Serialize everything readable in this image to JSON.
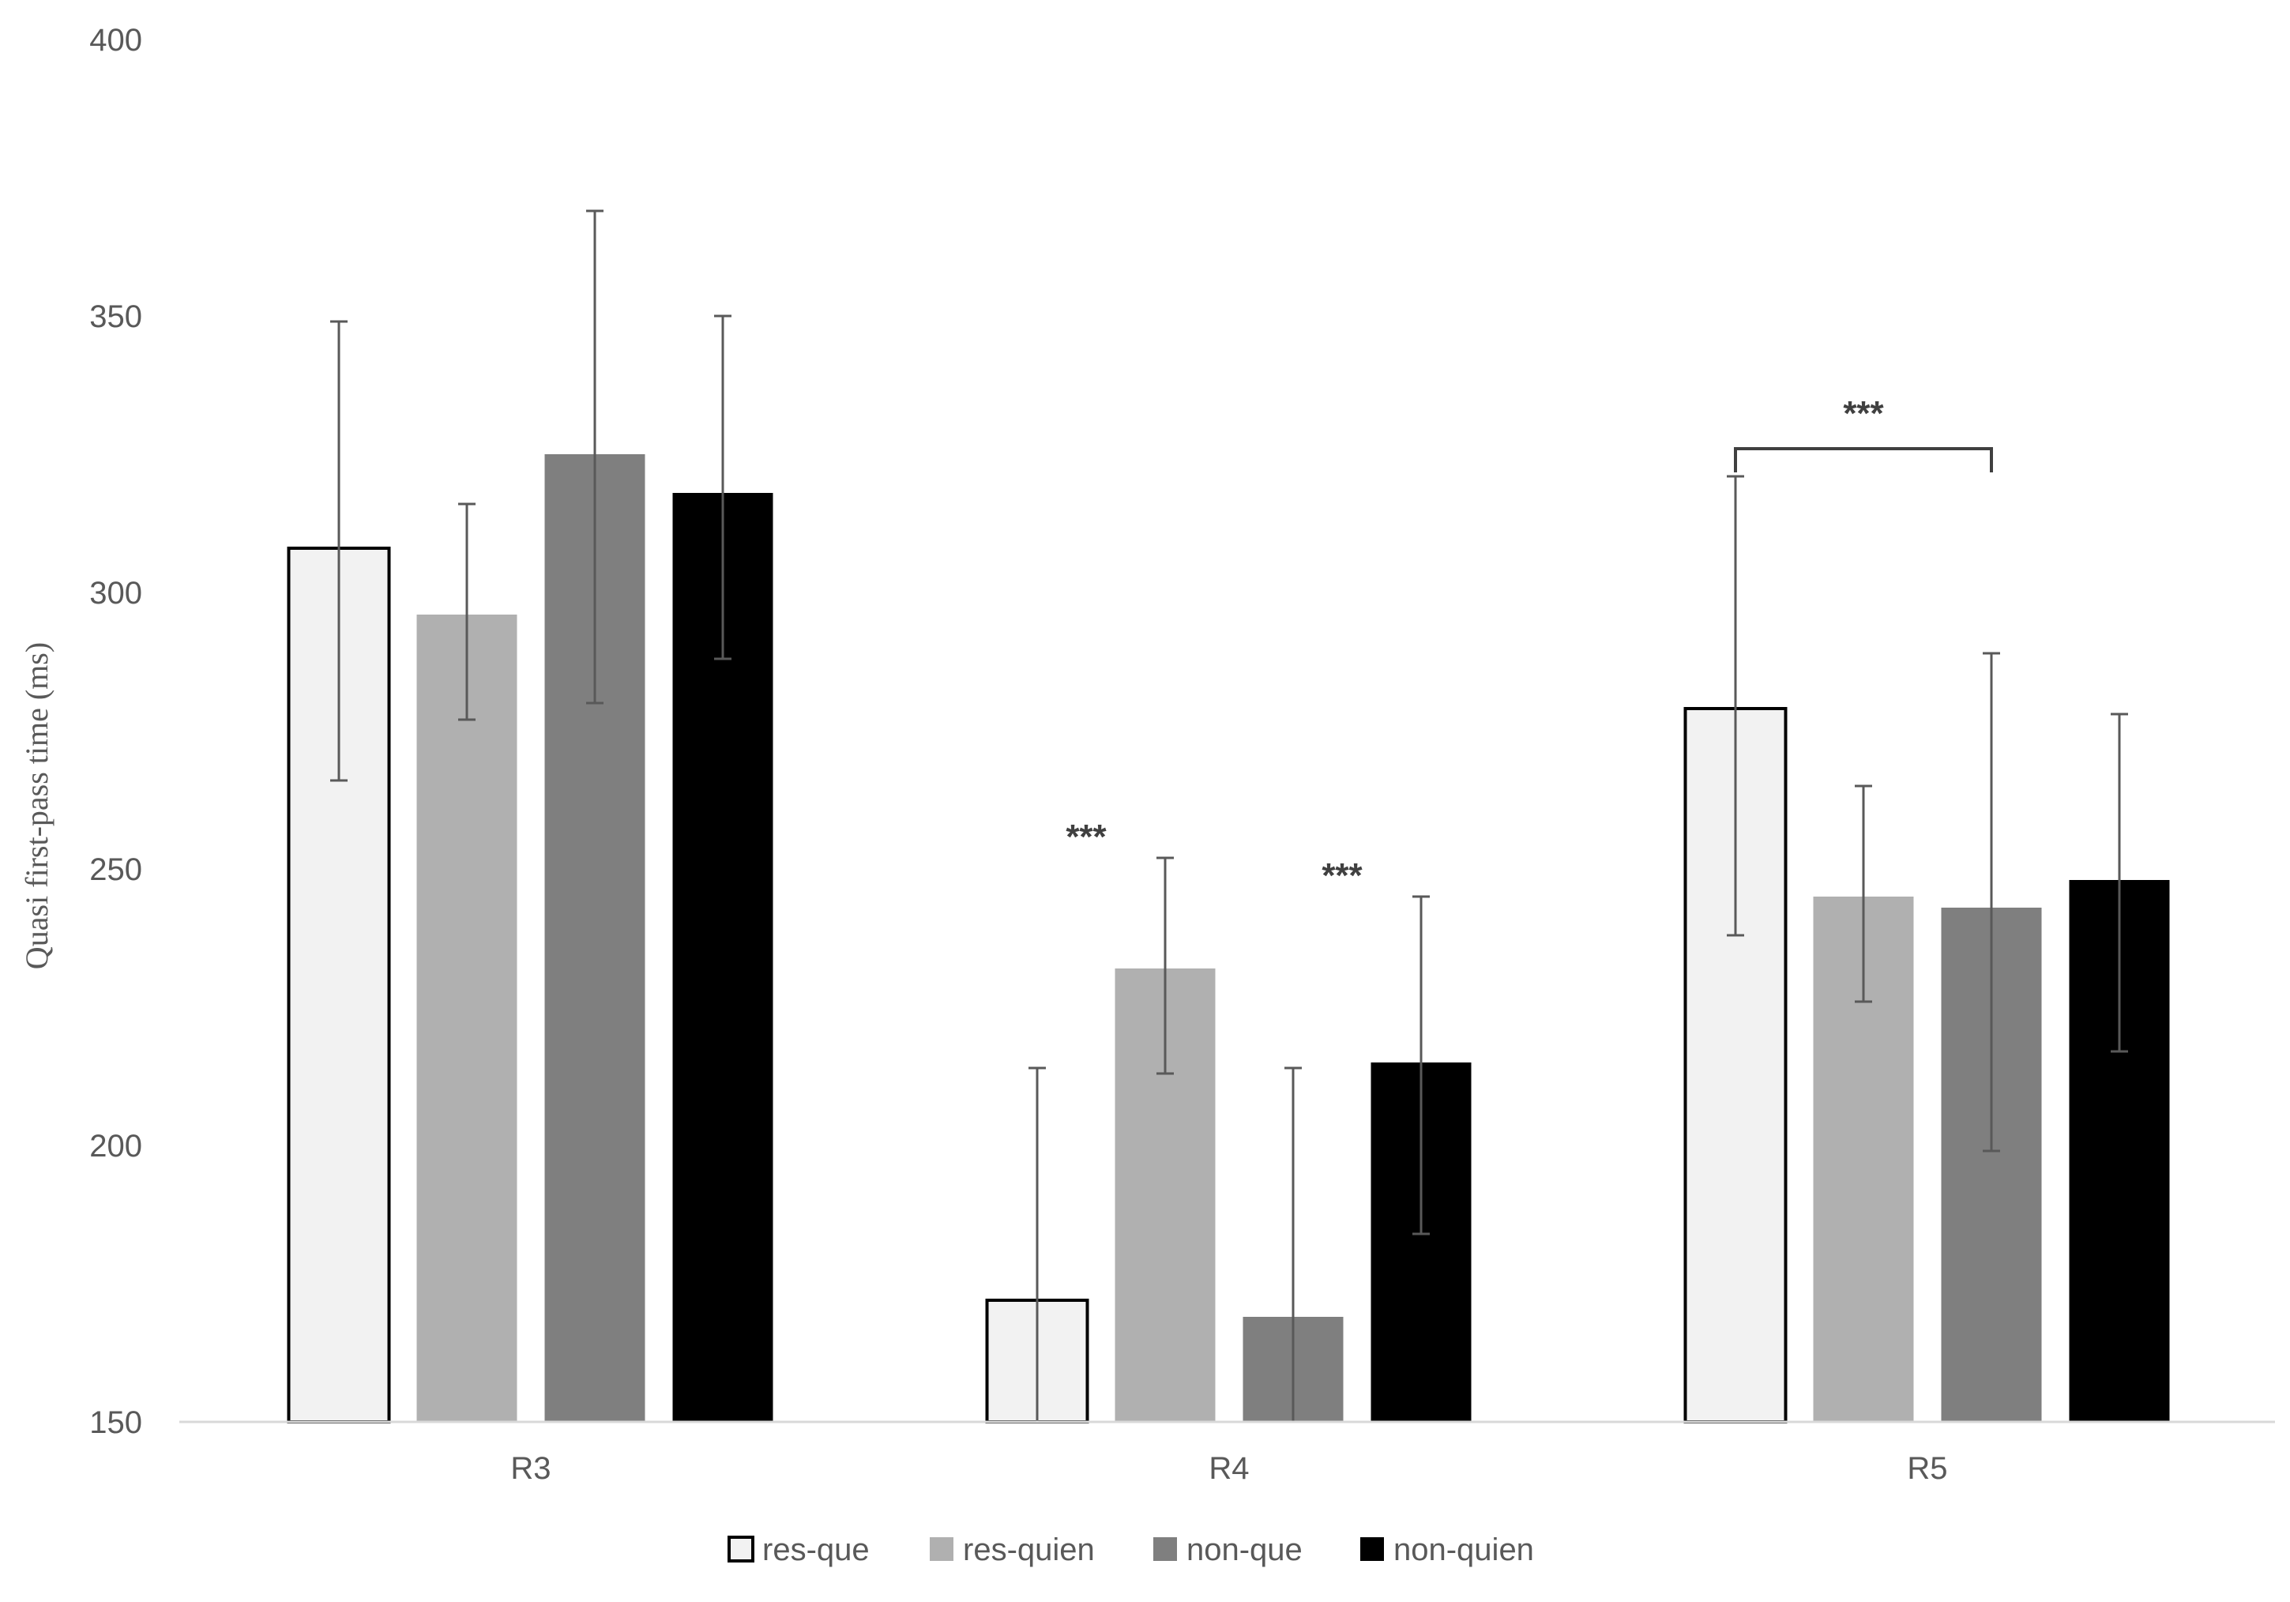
{
  "chart_data": {
    "type": "bar",
    "title": "",
    "xlabel": "",
    "ylabel": "Quasi first-pass time (ms)",
    "ylim": [
      150,
      400
    ],
    "yticks": [
      150,
      200,
      250,
      300,
      350,
      400
    ],
    "grid": false,
    "legend_position": "bottom",
    "categories": [
      "R3",
      "R4",
      "R5"
    ],
    "series": [
      {
        "name": "res-que",
        "color": "#f2f2f2",
        "values": [
          308,
          172,
          279
        ],
        "error_low": [
          266,
          150,
          238
        ],
        "error_high": [
          349,
          214,
          321
        ]
      },
      {
        "name": "res-quien",
        "color": "#b0b0b0",
        "values": [
          296,
          232,
          245
        ],
        "error_low": [
          277,
          213,
          226
        ],
        "error_high": [
          316,
          252,
          265
        ]
      },
      {
        "name": "non-que",
        "color": "#7f7f7f",
        "values": [
          325,
          169,
          243
        ],
        "error_low": [
          280,
          150,
          199
        ],
        "error_high": [
          369,
          214,
          289
        ]
      },
      {
        "name": "non-quien",
        "color": "#000000",
        "values": [
          318,
          215,
          248
        ],
        "error_low": [
          288,
          184,
          217
        ],
        "error_high": [
          350,
          245,
          278
        ]
      }
    ],
    "annotations": [
      {
        "text": "***",
        "category": "R4",
        "series": "res-quien",
        "y": 258
      },
      {
        "text": "***",
        "category": "R4",
        "series": "non-quien",
        "y": 251
      },
      {
        "text": "***",
        "category": "R5",
        "bracket_from": "res-que",
        "bracket_to": "non-que",
        "y": 326
      }
    ]
  }
}
